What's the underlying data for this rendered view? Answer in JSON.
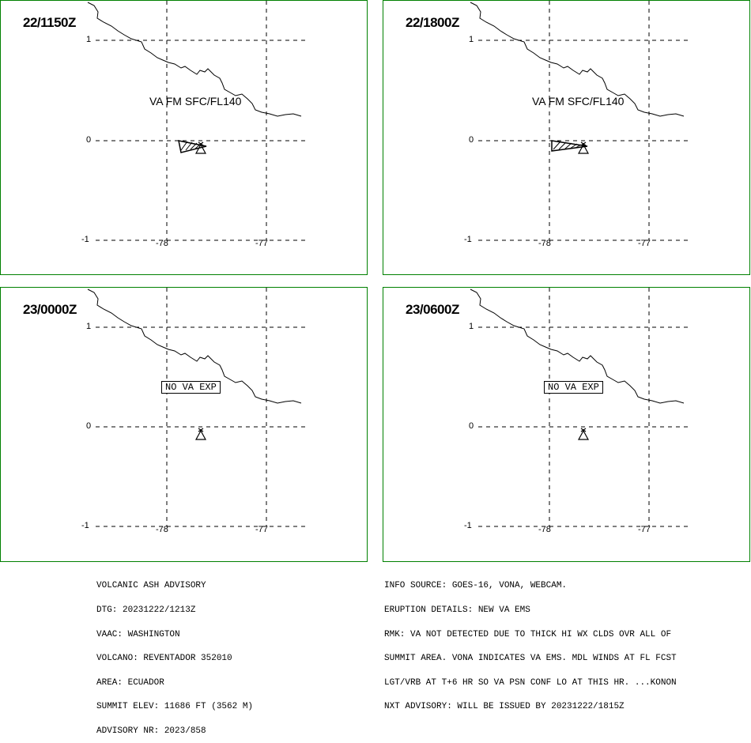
{
  "panels": [
    {
      "time": "22/1150Z",
      "label_type": "va",
      "label": "VA FM SFC/FL140"
    },
    {
      "time": "22/1800Z",
      "label_type": "va",
      "label": "VA FM SFC/FL140"
    },
    {
      "time": "23/0000Z",
      "label_type": "none",
      "label": "NO VA EXP"
    },
    {
      "time": "23/0600Z",
      "label_type": "none",
      "label": "NO VA EXP"
    }
  ],
  "axes": {
    "lat_labels": [
      "1",
      "0",
      "-1"
    ],
    "lon_labels": [
      "-78",
      "-77"
    ]
  },
  "advisory_left": [
    "VOLCANIC ASH ADVISORY",
    "DTG: 20231222/1213Z",
    "VAAC: WASHINGTON",
    "VOLCANO: REVENTADOR 352010",
    "AREA: ECUADOR",
    "SUMMIT ELEV: 11686 FT (3562 M)",
    "ADVISORY NR: 2023/858"
  ],
  "advisory_right": [
    "INFO SOURCE: GOES-16, VONA, WEBCAM.",
    "ERUPTION DETAILS: NEW VA EMS",
    "RMK: VA NOT DETECTED DUE TO THICK HI WX CLDS OVR ALL OF",
    "SUMMIT AREA. VONA INDICATES VA EMS. MDL WINDS AT FL FCST",
    "LGT/VRB AT T+6 HR SO VA PSN CONF LO AT THIS HR. ...KONON",
    "NXT ADVISORY: WILL BE ISSUED BY 20231222/1815Z"
  ],
  "colors": {
    "border": "#008000"
  }
}
